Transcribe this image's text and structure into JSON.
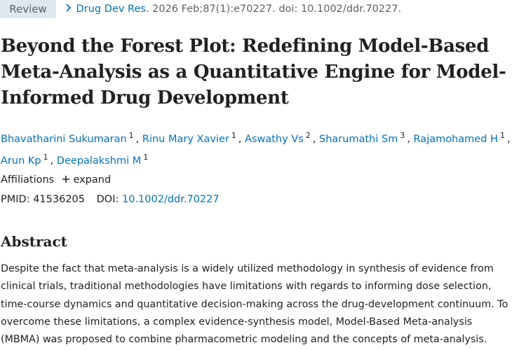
{
  "header": {
    "badge": "Review",
    "journal": "Drug Dev Res.",
    "citation": "2026 Feb;87(1):e70227. doi: 10.1002/ddr.70227."
  },
  "title_lines": [
    "Beyond the Forest Plot: Redefining Model-Based",
    "Meta-Analysis as a Quantitative Engine for Model-",
    "Informed Drug Development"
  ],
  "authors": {
    "separator": ",",
    "list": [
      {
        "name": "Bhavatharini Sukumaran",
        "affiliation": "1"
      },
      {
        "name": "Rinu Mary Xavier",
        "affiliation": "1"
      },
      {
        "name": "Aswathy Vs",
        "affiliation": "2"
      },
      {
        "name": "Sharumathi Sm",
        "affiliation": "3"
      },
      {
        "name": "Rajamohamed H",
        "affiliation": "1"
      },
      {
        "name": "Arun Kp",
        "affiliation": "1"
      },
      {
        "name": "Deepalakshmi M",
        "affiliation": "1"
      }
    ]
  },
  "affiliations": {
    "label": "Affiliations",
    "action": "expand"
  },
  "ids": {
    "pmid_label": "PMID:",
    "pmid": "41536205",
    "doi_label": "DOI:",
    "doi": "10.1002/ddr.70227"
  },
  "abstract": {
    "heading": "Abstract",
    "lines": [
      "Despite the fact that meta-analysis is a widely utilized methodology in synthesis of evidence from",
      "clinical trials, traditional methodologies have limitations with regards to informing dose selection,",
      "time-course dynamics and quantitative decision-making across the drug-development continuum. To",
      "overcome these limitations, a complex evidence-synthesis model, Model-Based Meta-analysis",
      "(MBMA) was proposed to combine pharmacometric modeling and the concepts of meta-analysis."
    ]
  }
}
